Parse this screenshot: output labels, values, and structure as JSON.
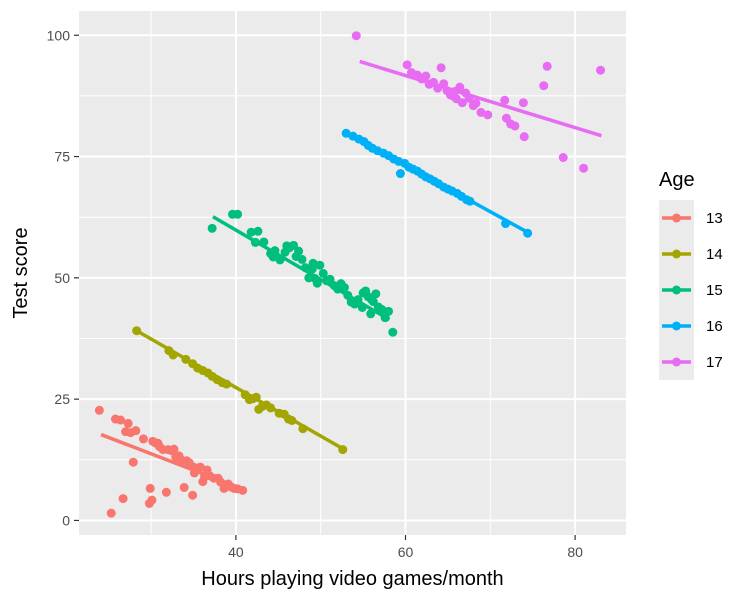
{
  "chart_data": {
    "type": "scatter",
    "title": "",
    "xlabel": "Hours playing video games/month",
    "ylabel": "Test score",
    "xlim": [
      21.5,
      86
    ],
    "ylim": [
      -3,
      105
    ],
    "x_ticks": [
      40,
      60,
      80
    ],
    "y_ticks": [
      0,
      25,
      50,
      75,
      100
    ],
    "x_minor_ticks": [
      30,
      50,
      70
    ],
    "y_minor_ticks": [
      12.5,
      37.5,
      62.5,
      87.5
    ],
    "grid": true,
    "legend": {
      "title": "Age",
      "position": "right"
    },
    "series": [
      {
        "name": "13",
        "color": "#F8766D",
        "trend_line": {
          "x": [
            24.1,
            40.9
          ],
          "y": [
            17.7,
            6.4
          ]
        },
        "points": [
          [
            23.9,
            22.7
          ],
          [
            25.3,
            1.5
          ],
          [
            25.8,
            20.9
          ],
          [
            26.4,
            20.7
          ],
          [
            26.7,
            4.5
          ],
          [
            27.0,
            18.3
          ],
          [
            27.3,
            20.0
          ],
          [
            27.6,
            18.1
          ],
          [
            27.9,
            12.0
          ],
          [
            28.2,
            18.5
          ],
          [
            29.1,
            16.8
          ],
          [
            29.8,
            3.5
          ],
          [
            29.9,
            6.6
          ],
          [
            30.1,
            4.2
          ],
          [
            30.2,
            16.3
          ],
          [
            30.5,
            16.0
          ],
          [
            30.8,
            15.9
          ],
          [
            31.0,
            15.2
          ],
          [
            31.4,
            14.6
          ],
          [
            31.8,
            5.8
          ],
          [
            32.0,
            14.6
          ],
          [
            32.4,
            14.4
          ],
          [
            32.7,
            14.7
          ],
          [
            32.9,
            13.1
          ],
          [
            33.1,
            12.4
          ],
          [
            33.3,
            13.3
          ],
          [
            33.6,
            12.4
          ],
          [
            33.9,
            6.8
          ],
          [
            34.2,
            12.3
          ],
          [
            34.5,
            11.9
          ],
          [
            34.9,
            5.2
          ],
          [
            35.0,
            11.0
          ],
          [
            35.1,
            9.8
          ],
          [
            35.6,
            10.8
          ],
          [
            35.8,
            11.0
          ],
          [
            36.1,
            8.0
          ],
          [
            36.3,
            9.0
          ],
          [
            36.6,
            10.4
          ],
          [
            36.9,
            9.2
          ],
          [
            37.4,
            8.7
          ],
          [
            37.9,
            8.7
          ],
          [
            38.2,
            7.9
          ],
          [
            38.6,
            6.6
          ],
          [
            39.1,
            7.5
          ],
          [
            39.4,
            6.9
          ],
          [
            39.8,
            6.6
          ],
          [
            40.2,
            6.5
          ],
          [
            40.8,
            6.2
          ]
        ]
      },
      {
        "name": "14",
        "color": "#A3A500",
        "trend_line": {
          "x": [
            28.3,
            52.7
          ],
          "y": [
            39.1,
            14.7
          ]
        },
        "points": [
          [
            28.3,
            39.1
          ],
          [
            32.1,
            35.0
          ],
          [
            32.6,
            34.1
          ],
          [
            34.1,
            33.2
          ],
          [
            34.9,
            32.3
          ],
          [
            35.5,
            31.4
          ],
          [
            36.1,
            30.9
          ],
          [
            36.7,
            30.4
          ],
          [
            37.2,
            29.7
          ],
          [
            37.8,
            29.0
          ],
          [
            38.4,
            28.4
          ],
          [
            38.9,
            28.1
          ],
          [
            41.1,
            25.9
          ],
          [
            41.6,
            24.9
          ],
          [
            42.0,
            25.1
          ],
          [
            42.4,
            25.4
          ],
          [
            42.7,
            22.9
          ],
          [
            43.1,
            23.5
          ],
          [
            43.6,
            23.8
          ],
          [
            44.1,
            23.2
          ],
          [
            45.1,
            22.1
          ],
          [
            45.7,
            21.9
          ],
          [
            46.2,
            20.9
          ],
          [
            46.6,
            20.6
          ],
          [
            47.9,
            18.9
          ],
          [
            52.6,
            14.6
          ]
        ]
      },
      {
        "name": "15",
        "color": "#00BF7D",
        "trend_line": {
          "x": [
            37.3,
            58.1
          ],
          "y": [
            62.6,
            41.4
          ]
        },
        "points": [
          [
            37.2,
            60.2
          ],
          [
            39.6,
            63.1
          ],
          [
            40.2,
            63.1
          ],
          [
            41.8,
            59.4
          ],
          [
            42.3,
            57.3
          ],
          [
            42.6,
            59.6
          ],
          [
            43.3,
            57.4
          ],
          [
            44.1,
            55.0
          ],
          [
            44.6,
            55.6
          ],
          [
            45.2,
            53.7
          ],
          [
            45.8,
            55.3
          ],
          [
            46.3,
            56.2
          ],
          [
            46.8,
            56.7
          ],
          [
            47.1,
            54.4
          ],
          [
            47.4,
            55.5
          ],
          [
            47.8,
            53.8
          ],
          [
            48.2,
            52.1
          ],
          [
            48.6,
            50.0
          ],
          [
            49.0,
            51.8
          ],
          [
            49.3,
            49.9
          ],
          [
            49.6,
            48.9
          ],
          [
            49.9,
            52.6
          ],
          [
            50.3,
            50.9
          ],
          [
            50.7,
            49.4
          ],
          [
            51.1,
            49.7
          ],
          [
            51.6,
            48.4
          ],
          [
            52.0,
            47.7
          ],
          [
            52.4,
            48.8
          ],
          [
            52.8,
            48.0
          ],
          [
            53.2,
            46.4
          ],
          [
            53.6,
            45.0
          ],
          [
            54.0,
            44.6
          ],
          [
            54.4,
            45.5
          ],
          [
            54.9,
            43.9
          ],
          [
            55.3,
            47.3
          ],
          [
            55.6,
            46.1
          ],
          [
            55.9,
            42.6
          ],
          [
            56.2,
            45.1
          ],
          [
            56.5,
            46.7
          ],
          [
            56.8,
            44.0
          ],
          [
            57.2,
            43.5
          ],
          [
            57.6,
            41.8
          ],
          [
            58.0,
            43.1
          ],
          [
            58.5,
            38.8
          ],
          [
            49.1,
            53.0
          ],
          [
            46.0,
            56.6
          ],
          [
            44.4,
            54.3
          ],
          [
            55.0,
            46.9
          ],
          [
            56.0,
            45.5
          ]
        ]
      },
      {
        "name": "16",
        "color": "#00B0F6",
        "trend_line": {
          "x": [
            53.1,
            74.7
          ],
          "y": [
            79.9,
            59.1
          ]
        },
        "points": [
          [
            53.0,
            79.8
          ],
          [
            53.8,
            79.2
          ],
          [
            54.5,
            78.6
          ],
          [
            55.1,
            78.1
          ],
          [
            55.6,
            77.3
          ],
          [
            56.1,
            76.7
          ],
          [
            56.7,
            76.2
          ],
          [
            57.4,
            75.7
          ],
          [
            58.0,
            75.2
          ],
          [
            58.6,
            74.5
          ],
          [
            59.2,
            74.0
          ],
          [
            59.4,
            71.5
          ],
          [
            59.9,
            73.6
          ],
          [
            60.4,
            72.8
          ],
          [
            60.9,
            72.4
          ],
          [
            61.4,
            72.0
          ],
          [
            61.9,
            71.4
          ],
          [
            62.4,
            70.8
          ],
          [
            62.9,
            70.4
          ],
          [
            63.4,
            69.9
          ],
          [
            63.9,
            69.4
          ],
          [
            64.5,
            68.7
          ],
          [
            65.0,
            68.3
          ],
          [
            65.5,
            67.9
          ],
          [
            66.1,
            67.4
          ],
          [
            66.6,
            66.8
          ],
          [
            67.2,
            66.1
          ],
          [
            67.6,
            65.8
          ],
          [
            71.8,
            61.2
          ],
          [
            74.4,
            59.2
          ]
        ]
      },
      {
        "name": "17",
        "color": "#E76BF3",
        "trend_line": {
          "x": [
            54.6,
            83.1
          ],
          "y": [
            94.6,
            79.3
          ]
        },
        "points": [
          [
            54.2,
            99.9
          ],
          [
            60.2,
            93.9
          ],
          [
            60.7,
            92.3
          ],
          [
            61.4,
            91.8
          ],
          [
            61.9,
            91.0
          ],
          [
            62.4,
            91.6
          ],
          [
            62.8,
            89.9
          ],
          [
            63.3,
            90.3
          ],
          [
            63.8,
            89.1
          ],
          [
            64.2,
            93.3
          ],
          [
            64.5,
            90.0
          ],
          [
            64.9,
            88.6
          ],
          [
            65.3,
            87.7
          ],
          [
            65.6,
            87.5
          ],
          [
            66.0,
            86.9
          ],
          [
            66.4,
            89.3
          ],
          [
            66.7,
            86.1
          ],
          [
            67.1,
            88.1
          ],
          [
            67.5,
            87.0
          ],
          [
            68.0,
            85.5
          ],
          [
            68.3,
            86.0
          ],
          [
            68.9,
            84.1
          ],
          [
            69.7,
            83.6
          ],
          [
            71.7,
            86.6
          ],
          [
            71.9,
            82.9
          ],
          [
            72.4,
            81.7
          ],
          [
            72.9,
            81.3
          ],
          [
            73.9,
            86.1
          ],
          [
            74.0,
            79.1
          ],
          [
            76.3,
            89.6
          ],
          [
            76.7,
            93.6
          ],
          [
            78.6,
            74.8
          ],
          [
            81.0,
            72.6
          ],
          [
            83.0,
            92.8
          ],
          [
            65.8,
            88.4
          ]
        ]
      }
    ]
  }
}
